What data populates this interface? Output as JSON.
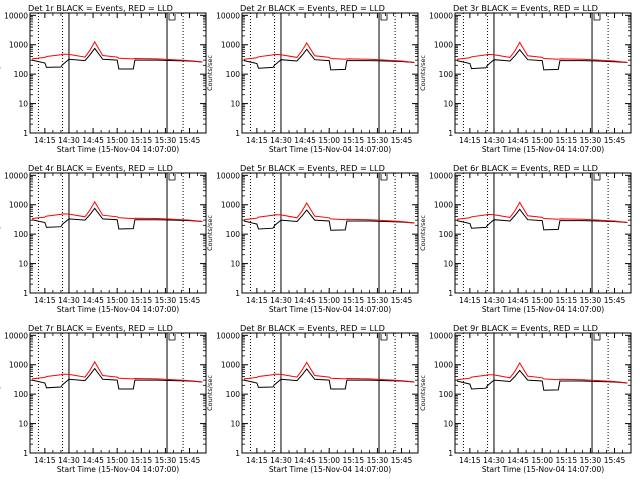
{
  "figure": {
    "xlabel": "Start Time (15-Nov-04 14:07:00)",
    "ylabel": "Counts/sec"
  },
  "colors": {
    "events": "#000000",
    "lld": "#ff0000",
    "background": "#ffffff"
  },
  "axes_common": {
    "x_tick_labels": [
      "14:15",
      "14:30",
      "14:45",
      "15:00",
      "15:15",
      "15:30",
      "15:45"
    ],
    "x_tick_minutes": [
      0,
      15,
      30,
      45,
      60,
      75,
      90
    ],
    "xlim_minutes": [
      -8,
      99
    ],
    "y_scale": "log",
    "ylim": [
      1,
      12000
    ],
    "y_tick_values": [
      1,
      10,
      100,
      1000,
      10000
    ],
    "y_tick_labels": [
      "1",
      "10",
      "100",
      "1000",
      "10000"
    ],
    "dotted_vlines_minutes": [
      -4,
      11,
      86
    ],
    "solid_vlines_minutes": [
      15,
      76
    ]
  },
  "chart_data": [
    {
      "type": "line",
      "title": "Det 1r BLACK = Events, RED = LLD",
      "xlabel": "Start Time (15-Nov-04 14:07:00)",
      "ylabel": "Counts/sec",
      "yscale": "log",
      "ylim": [
        1,
        12000
      ],
      "x_minutes": [
        -8,
        0,
        1,
        10,
        11,
        15,
        25,
        28,
        31,
        36,
        45,
        46,
        55,
        56,
        70,
        80,
        90,
        98
      ],
      "series": [
        {
          "name": "Events",
          "color": "#000000",
          "y": [
            300,
            240,
            170,
            175,
            210,
            320,
            290,
            450,
            750,
            320,
            300,
            150,
            150,
            300,
            300,
            290,
            280,
            260
          ]
        },
        {
          "name": "LLD",
          "color": "#ff0000",
          "y": [
            330,
            370,
            400,
            460,
            480,
            470,
            380,
            650,
            1250,
            430,
            380,
            350,
            330,
            340,
            330,
            310,
            290,
            260
          ]
        }
      ]
    },
    {
      "type": "line",
      "title": "Det 2r BLACK = Events, RED = LLD",
      "xlabel": "Start Time (15-Nov-04 14:07:00)",
      "ylabel": "Counts/sec",
      "yscale": "log",
      "ylim": [
        1,
        12000
      ],
      "x_minutes": [
        -8,
        0,
        1,
        10,
        11,
        15,
        25,
        28,
        31,
        36,
        45,
        46,
        55,
        56,
        70,
        80,
        90,
        98
      ],
      "series": [
        {
          "name": "Events",
          "color": "#000000",
          "y": [
            290,
            230,
            160,
            170,
            200,
            310,
            280,
            430,
            700,
            310,
            290,
            140,
            145,
            290,
            290,
            280,
            270,
            250
          ]
        },
        {
          "name": "LLD",
          "color": "#ff0000",
          "y": [
            320,
            360,
            390,
            450,
            470,
            460,
            370,
            620,
            1150,
            420,
            370,
            340,
            320,
            330,
            320,
            300,
            280,
            250
          ]
        }
      ]
    },
    {
      "type": "line",
      "title": "Det 3r BLACK = Events, RED = LLD",
      "xlabel": "Start Time (15-Nov-04 14:07:00)",
      "ylabel": "Counts/sec",
      "yscale": "log",
      "ylim": [
        1,
        12000
      ],
      "x_minutes": [
        -8,
        0,
        1,
        10,
        11,
        15,
        25,
        28,
        31,
        36,
        45,
        46,
        55,
        56,
        70,
        80,
        90,
        98
      ],
      "series": [
        {
          "name": "Events",
          "color": "#000000",
          "y": [
            290,
            230,
            155,
            165,
            200,
            310,
            280,
            420,
            680,
            310,
            290,
            140,
            145,
            290,
            290,
            280,
            265,
            250
          ]
        },
        {
          "name": "LLD",
          "color": "#ff0000",
          "y": [
            320,
            360,
            390,
            450,
            470,
            460,
            370,
            620,
            1200,
            420,
            370,
            340,
            320,
            330,
            320,
            300,
            280,
            250
          ]
        }
      ]
    },
    {
      "type": "line",
      "title": "Det 4r BLACK = Events, RED = LLD",
      "xlabel": "Start Time (15-Nov-04 14:07:00)",
      "ylabel": "Counts/sec",
      "yscale": "log",
      "ylim": [
        1,
        12000
      ],
      "x_minutes": [
        -8,
        0,
        1,
        10,
        11,
        15,
        25,
        28,
        31,
        36,
        45,
        46,
        55,
        56,
        70,
        80,
        90,
        98
      ],
      "series": [
        {
          "name": "Events",
          "color": "#000000",
          "y": [
            310,
            250,
            170,
            180,
            220,
            330,
            300,
            460,
            760,
            330,
            310,
            150,
            155,
            310,
            310,
            300,
            290,
            270
          ]
        },
        {
          "name": "LLD",
          "color": "#ff0000",
          "y": [
            340,
            380,
            410,
            470,
            490,
            480,
            390,
            660,
            1250,
            440,
            390,
            360,
            340,
            350,
            340,
            320,
            300,
            270
          ]
        }
      ]
    },
    {
      "type": "line",
      "title": "Det 5r BLACK = Events, RED = LLD",
      "xlabel": "Start Time (15-Nov-04 14:07:00)",
      "ylabel": "Counts/sec",
      "yscale": "log",
      "ylim": [
        1,
        12000
      ],
      "x_minutes": [
        -8,
        0,
        1,
        10,
        11,
        15,
        25,
        28,
        31,
        36,
        45,
        46,
        55,
        56,
        70,
        80,
        90,
        98
      ],
      "series": [
        {
          "name": "Events",
          "color": "#000000",
          "y": [
            280,
            220,
            150,
            160,
            195,
            300,
            270,
            410,
            660,
            300,
            280,
            135,
            140,
            280,
            280,
            270,
            260,
            240
          ]
        },
        {
          "name": "LLD",
          "color": "#ff0000",
          "y": [
            310,
            350,
            380,
            440,
            460,
            450,
            360,
            600,
            1150,
            410,
            360,
            330,
            310,
            320,
            310,
            290,
            270,
            240
          ]
        }
      ]
    },
    {
      "type": "line",
      "title": "Det 6r BLACK = Events, RED = LLD",
      "xlabel": "Start Time (15-Nov-04 14:07:00)",
      "ylabel": "Counts/sec",
      "yscale": "log",
      "ylim": [
        1,
        12000
      ],
      "x_minutes": [
        -8,
        0,
        1,
        10,
        11,
        15,
        25,
        28,
        31,
        36,
        45,
        46,
        55,
        56,
        70,
        80,
        90,
        98
      ],
      "series": [
        {
          "name": "Events",
          "color": "#000000",
          "y": [
            290,
            230,
            160,
            170,
            200,
            310,
            280,
            430,
            700,
            310,
            290,
            140,
            145,
            290,
            290,
            280,
            270,
            250
          ]
        },
        {
          "name": "LLD",
          "color": "#ff0000",
          "y": [
            320,
            360,
            390,
            450,
            470,
            460,
            370,
            620,
            1200,
            420,
            370,
            340,
            320,
            330,
            320,
            300,
            280,
            250
          ]
        }
      ]
    },
    {
      "type": "line",
      "title": "Det 7r BLACK = Events, RED = LLD",
      "xlabel": "Start Time (15-Nov-04 14:07:00)",
      "ylabel": "Counts/sec",
      "yscale": "log",
      "ylim": [
        1,
        12000
      ],
      "x_minutes": [
        -8,
        0,
        1,
        10,
        11,
        15,
        25,
        28,
        31,
        36,
        45,
        46,
        55,
        56,
        70,
        80,
        90,
        98
      ],
      "series": [
        {
          "name": "Events",
          "color": "#000000",
          "y": [
            300,
            240,
            165,
            175,
            210,
            320,
            290,
            450,
            740,
            320,
            300,
            150,
            150,
            300,
            300,
            290,
            280,
            260
          ]
        },
        {
          "name": "LLD",
          "color": "#ff0000",
          "y": [
            330,
            370,
            400,
            460,
            480,
            470,
            380,
            650,
            1250,
            430,
            380,
            350,
            330,
            340,
            330,
            310,
            290,
            260
          ]
        }
      ]
    },
    {
      "type": "line",
      "title": "Det 8r BLACK = Events, RED = LLD",
      "xlabel": "Start Time (15-Nov-04 14:07:00)",
      "ylabel": "Counts/sec",
      "yscale": "log",
      "ylim": [
        1,
        12000
      ],
      "x_minutes": [
        -8,
        0,
        1,
        10,
        11,
        15,
        25,
        28,
        31,
        36,
        45,
        46,
        55,
        56,
        70,
        80,
        90,
        98
      ],
      "series": [
        {
          "name": "Events",
          "color": "#000000",
          "y": [
            300,
            240,
            170,
            175,
            210,
            320,
            290,
            440,
            720,
            320,
            300,
            150,
            150,
            300,
            300,
            290,
            280,
            260
          ]
        },
        {
          "name": "LLD",
          "color": "#ff0000",
          "y": [
            330,
            370,
            400,
            460,
            480,
            470,
            380,
            640,
            1200,
            430,
            380,
            350,
            330,
            340,
            330,
            310,
            290,
            260
          ]
        }
      ]
    },
    {
      "type": "line",
      "title": "Det 9r BLACK = Events, RED = LLD",
      "xlabel": "Start Time (15-Nov-04 14:07:00)",
      "ylabel": "Counts/sec",
      "yscale": "log",
      "ylim": [
        1,
        12000
      ],
      "x_minutes": [
        -8,
        0,
        1,
        10,
        11,
        15,
        25,
        28,
        31,
        36,
        45,
        46,
        55,
        56,
        70,
        80,
        90,
        98
      ],
      "series": [
        {
          "name": "Events",
          "color": "#000000",
          "y": [
            280,
            220,
            150,
            160,
            195,
            300,
            270,
            400,
            640,
            300,
            280,
            135,
            140,
            280,
            280,
            270,
            260,
            240
          ]
        },
        {
          "name": "LLD",
          "color": "#ff0000",
          "y": [
            310,
            350,
            380,
            440,
            460,
            450,
            360,
            600,
            1150,
            410,
            360,
            330,
            310,
            320,
            310,
            290,
            270,
            240
          ]
        }
      ]
    }
  ]
}
